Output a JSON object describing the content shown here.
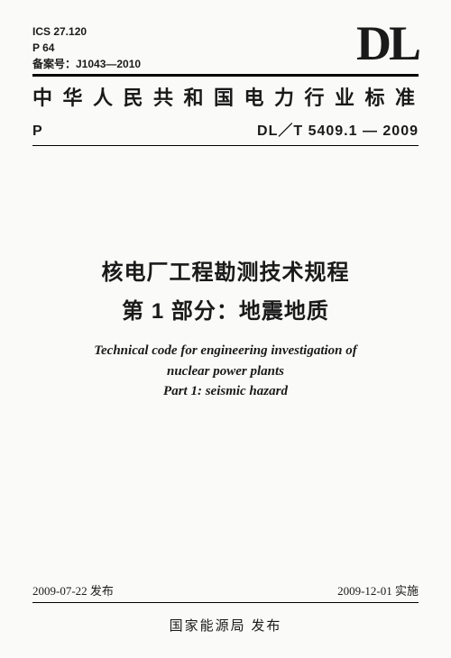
{
  "meta": {
    "ics": "ICS 27.120",
    "p_class": "P 64",
    "record_no": "备案号：J1043—2010"
  },
  "logo_text": "DL",
  "org_title": "中华人民共和国电力行业标准",
  "code": {
    "prefix": "P",
    "number": "DL／T 5409.1 — 2009"
  },
  "title": {
    "cn_line1": "核电厂工程勘测技术规程",
    "cn_line2": "第 1 部分：地震地质",
    "en_line1": "Technical code for engineering investigation of",
    "en_line2": "nuclear power plants",
    "en_line3": "Part 1: seismic hazard"
  },
  "dates": {
    "publish": "2009-07-22 发布",
    "effective": "2009-12-01 实施"
  },
  "issuer": "国家能源局  发布",
  "style": {
    "page_bg": "#fafaf8",
    "text_color": "#1a1a1a",
    "logo_fontsize": 54,
    "org_title_fontsize": 22,
    "main_title_fontsize": 24,
    "en_title_fontsize": 15,
    "meta_fontsize": 12,
    "code_fontsize": 16,
    "date_fontsize": 13,
    "issuer_fontsize": 15,
    "rule_heavy_w": 3,
    "rule_thin_w": 1.5
  }
}
